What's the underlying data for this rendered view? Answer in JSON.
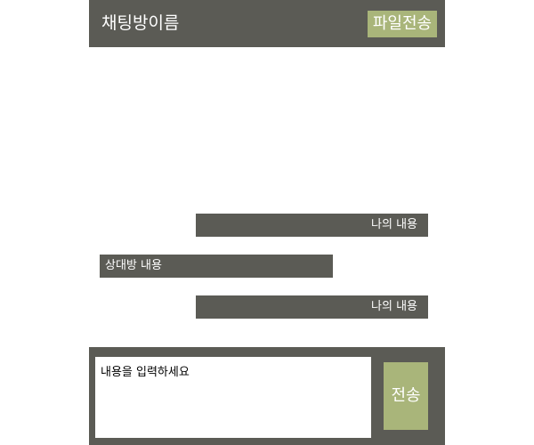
{
  "header": {
    "title": "채팅방이름",
    "file_button_label": "파일전송"
  },
  "messages": [
    {
      "sender": "me",
      "text": "나의 내용"
    },
    {
      "sender": "other",
      "text": "상대방 내용"
    },
    {
      "sender": "me",
      "text": "나의 내용"
    }
  ],
  "composer": {
    "placeholder": "내용을 입력하세요",
    "value": "",
    "send_label": "전송"
  },
  "colors": {
    "bar": "#5b5b55",
    "accent": "#a9b57a",
    "text_light": "#ffffff"
  }
}
